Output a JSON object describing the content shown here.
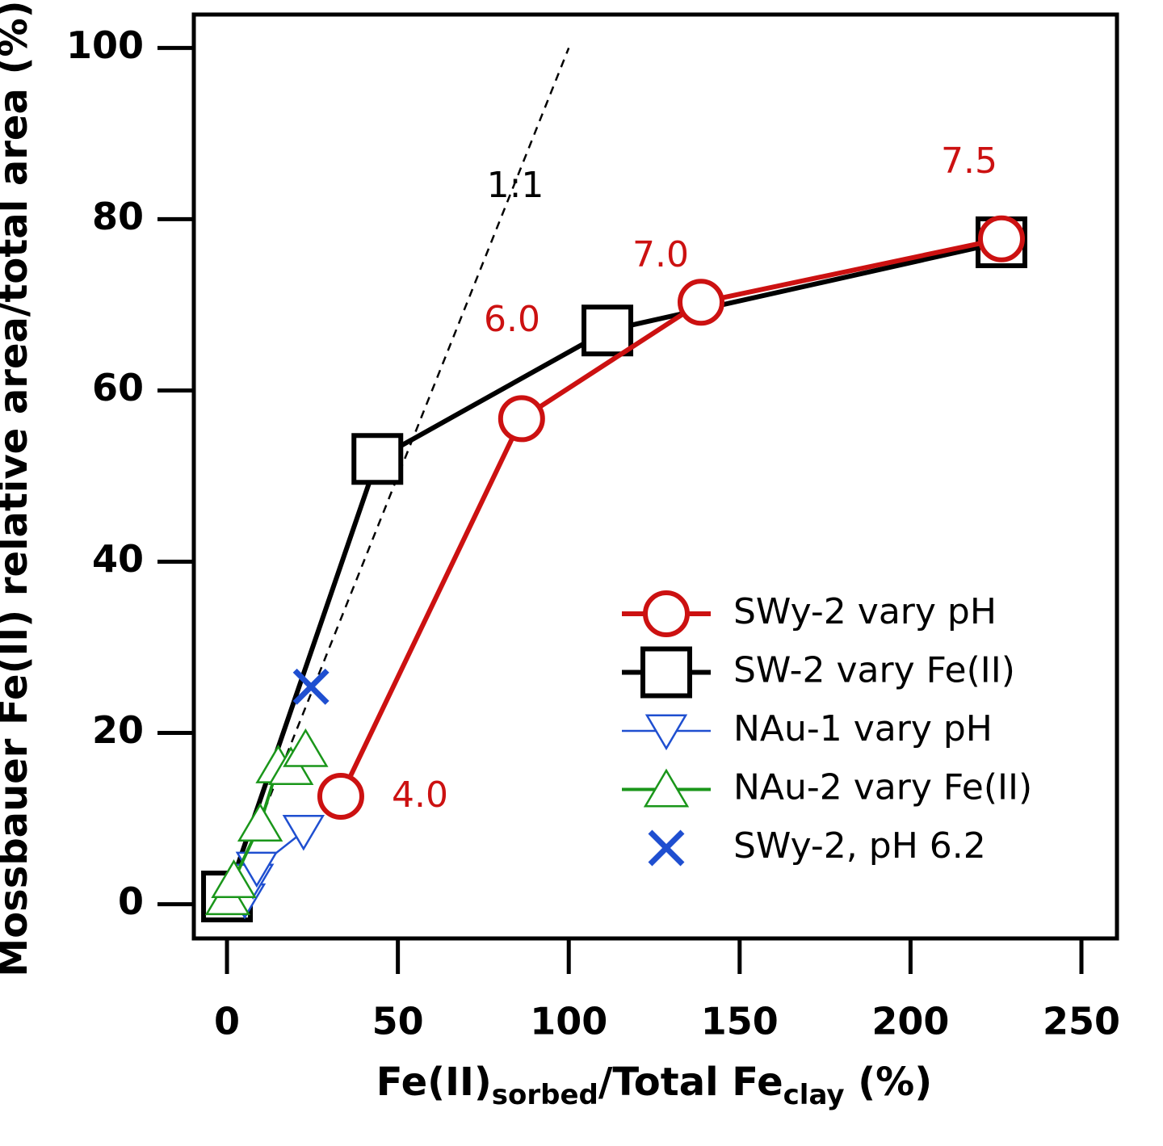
{
  "chart_data": {
    "type": "scatter",
    "xlabel_parts": [
      "Fe(II)",
      "sorbed",
      "/Total Fe",
      "clay",
      " (%)"
    ],
    "ylabel": "Mossbauer Fe(II) relative area/total area (%)",
    "xlim": [
      -9.7,
      260.4
    ],
    "ylim": [
      -4.0,
      103.9
    ],
    "xticks": [
      0,
      50,
      100,
      150,
      200,
      250
    ],
    "yticks": [
      0,
      20,
      40,
      60,
      80,
      100
    ],
    "reference_line": {
      "label": "1:1",
      "x": [
        0,
        100
      ],
      "y": [
        0,
        100
      ],
      "color": "#000000"
    },
    "annotations": [
      "4.0",
      "6.0",
      "7.0",
      "7.5"
    ],
    "annotation_color": "#cc1111",
    "series": [
      {
        "name": "SW-2 vary Fe(II)",
        "color": "#000000",
        "marker": "square",
        "line": true,
        "x": [
          0,
          44,
          111.3,
          226.6
        ],
        "values": [
          0.9,
          52.0,
          67.0,
          77.3
        ]
      },
      {
        "name": "SWy-2 vary pH",
        "color": "#cc1111",
        "marker": "circle",
        "line": true,
        "x": [
          33.3,
          86.2,
          138.7,
          226.6
        ],
        "values": [
          12.6,
          56.7,
          70.3,
          77.7
        ]
      },
      {
        "name": "NAu-1 vary pH",
        "color": "#1f4fd0",
        "marker": "triangle-down",
        "line": true,
        "x": [
          5.2,
          7.6,
          8.7,
          22.4
        ],
        "values": [
          0.5,
          2.8,
          4.2,
          8.5
        ]
      },
      {
        "name": "NAu-2 vary Fe(II)",
        "color": "#1a961a",
        "marker": "triangle-up",
        "line": true,
        "x": [
          0.2,
          2,
          9.7,
          15,
          18.7,
          23
        ],
        "values": [
          0.8,
          2.8,
          9.4,
          16.2,
          16,
          18.1
        ]
      },
      {
        "name": "SWy-2, pH 6.2",
        "color": "#1f4fd0",
        "marker": "x",
        "line": false,
        "x": [
          24.6
        ],
        "values": [
          25.4
        ]
      }
    ],
    "legend_order": [
      1,
      0,
      2,
      3,
      4
    ]
  }
}
